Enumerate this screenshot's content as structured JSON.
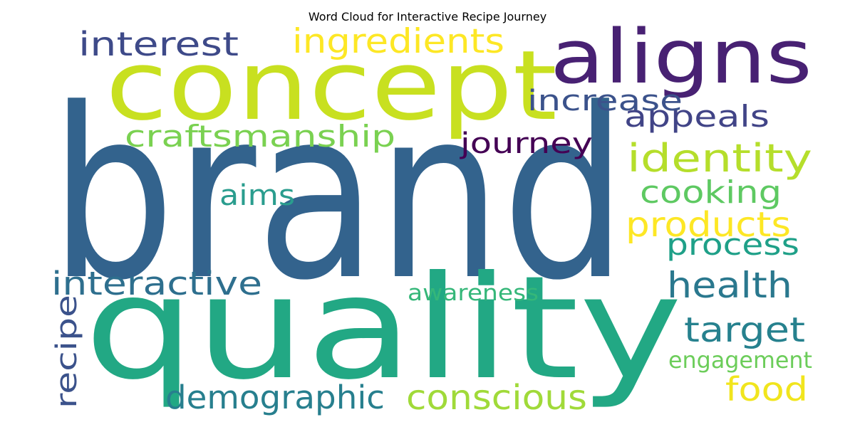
{
  "chart_data": {
    "type": "wordcloud",
    "title": "Word Cloud for Interactive Recipe Journey",
    "colormap": "viridis",
    "words": [
      {
        "text": "brand",
        "color": "#33638d"
      },
      {
        "text": "quality",
        "color": "#22a884"
      },
      {
        "text": "concept",
        "color": "#c8e020"
      },
      {
        "text": "aligns",
        "color": "#482173"
      },
      {
        "text": "ingredients",
        "color": "#fde725"
      },
      {
        "text": "interest",
        "color": "#3e4a89"
      },
      {
        "text": "increase",
        "color": "#3b528b"
      },
      {
        "text": "appeals",
        "color": "#414487"
      },
      {
        "text": "craftsmanship",
        "color": "#7ad151"
      },
      {
        "text": "journey",
        "color": "#440154"
      },
      {
        "text": "identity",
        "color": "#b5de2b"
      },
      {
        "text": "cooking",
        "color": "#5ec962"
      },
      {
        "text": "aims",
        "color": "#2a9d8e"
      },
      {
        "text": "products",
        "color": "#fde725"
      },
      {
        "text": "process",
        "color": "#1fa088"
      },
      {
        "text": "interactive",
        "color": "#2e6f8e"
      },
      {
        "text": "health",
        "color": "#2a788e"
      },
      {
        "text": "awareness",
        "color": "#35b779"
      },
      {
        "text": "target",
        "color": "#26818e"
      },
      {
        "text": "recipe",
        "color": "#3b528b"
      },
      {
        "text": "engagement",
        "color": "#6ccd5a"
      },
      {
        "text": "demographic",
        "color": "#277f8e"
      },
      {
        "text": "conscious",
        "color": "#a0da39"
      },
      {
        "text": "food",
        "color": "#f1e51d"
      }
    ]
  }
}
